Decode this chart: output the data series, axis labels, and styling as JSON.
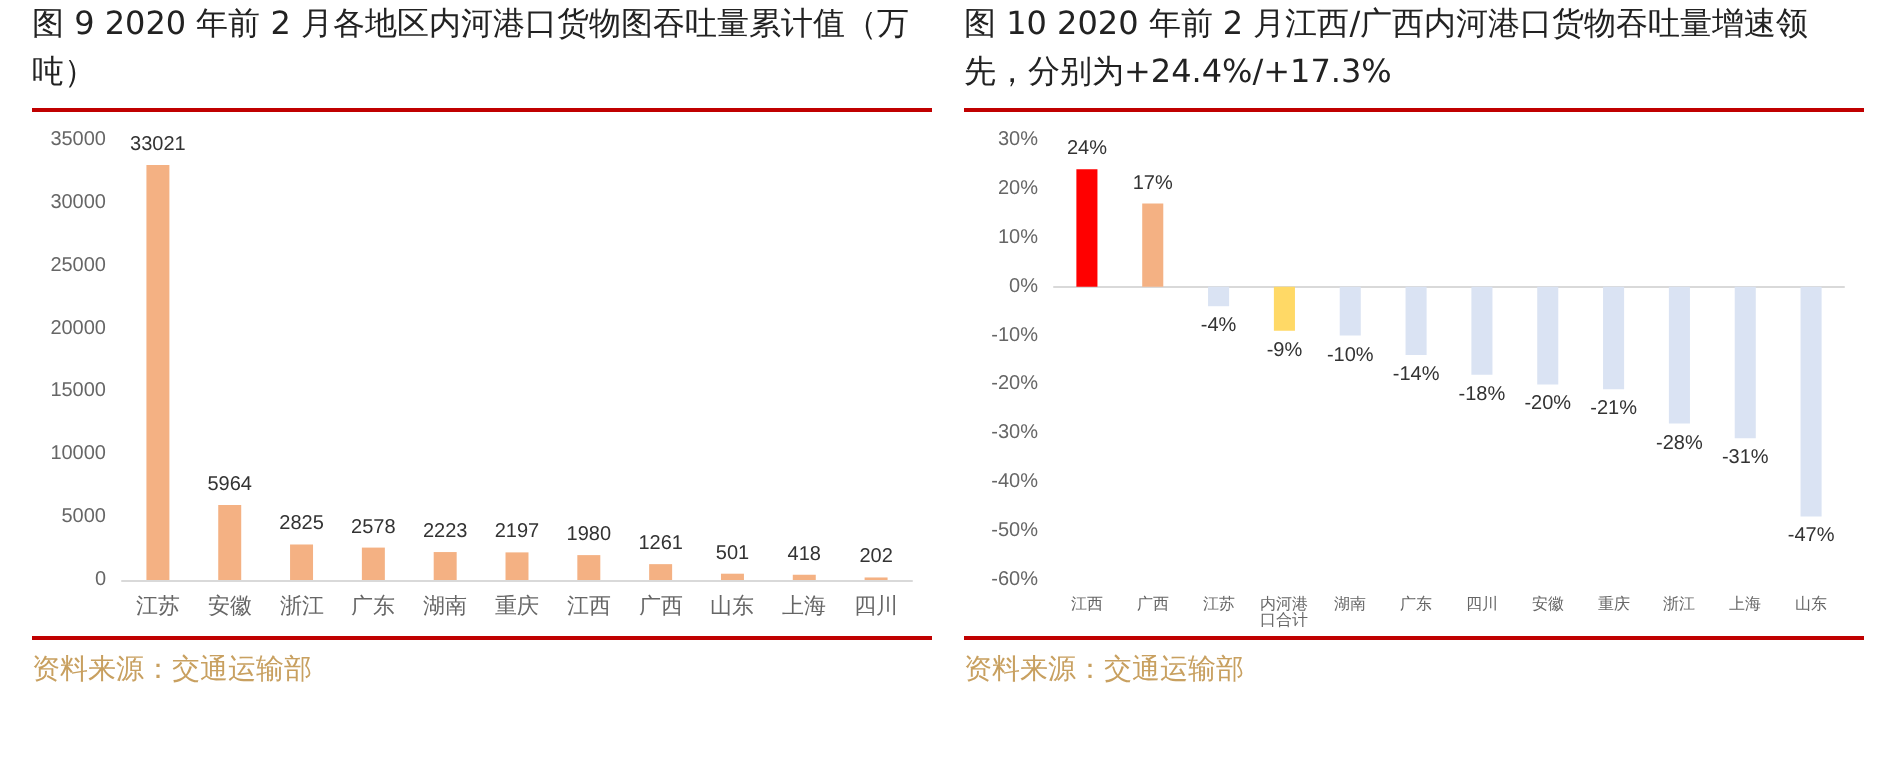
{
  "chart_data": [
    {
      "type": "bar",
      "title": "图 9 2020 年前 2 月各地区内河港口货物图吞吐量累计值（万吨）",
      "annotations": [
        "资料来源：交通运输部"
      ],
      "categories": [
        "江苏",
        "安徽",
        "浙江",
        "广东",
        "湖南",
        "重庆",
        "江西",
        "广西",
        "山东",
        "上海",
        "四川"
      ],
      "values": [
        33021,
        5964,
        2825,
        2578,
        2223,
        2197,
        1980,
        1261,
        501,
        418,
        202
      ],
      "color": "#f4b183",
      "ylim": [
        0,
        35000
      ],
      "yticks": [
        0,
        5000,
        10000,
        15000,
        20000,
        25000,
        30000,
        35000
      ],
      "data_labels": true
    },
    {
      "type": "bar",
      "title": "图 10 2020 年前 2 月江西/广西内河港口货物吞吐量增速领先，分别为+24.4%/+17.3%",
      "annotations": [
        "资料来源：交通运输部"
      ],
      "categories": [
        "江西",
        "广西",
        "江苏",
        "内河港口合计",
        "湖南",
        "广东",
        "四川",
        "安徽",
        "重庆",
        "浙江",
        "上海",
        "山东"
      ],
      "values": [
        24,
        17,
        -4,
        -9,
        -10,
        -14,
        -18,
        -20,
        -21,
        -28,
        -31,
        -47
      ],
      "colors": [
        "#ff0000",
        "#f4b183",
        "#dae3f3",
        "#ffd966",
        "#dae3f3",
        "#dae3f3",
        "#dae3f3",
        "#dae3f3",
        "#dae3f3",
        "#dae3f3",
        "#dae3f3",
        "#dae3f3"
      ],
      "value_labels": [
        "24%",
        "17%",
        "-4%",
        "-9%",
        "-10%",
        "-14%",
        "-18%",
        "-20%",
        "-21%",
        "-28%",
        "-31%",
        "-47%"
      ],
      "ylim": [
        -60,
        30
      ],
      "yticks": [
        {
          "value": -60,
          "label": "-60%"
        },
        {
          "value": -50,
          "label": "-50%"
        },
        {
          "value": -40,
          "label": "-40%"
        },
        {
          "value": -30,
          "label": "-30%"
        },
        {
          "value": -20,
          "label": "-20%"
        },
        {
          "value": -10,
          "label": "-10%"
        },
        {
          "value": 0,
          "label": "0%"
        },
        {
          "value": 10,
          "label": "10%"
        },
        {
          "value": 20,
          "label": "20%"
        },
        {
          "value": 30,
          "label": "30%"
        }
      ]
    }
  ]
}
